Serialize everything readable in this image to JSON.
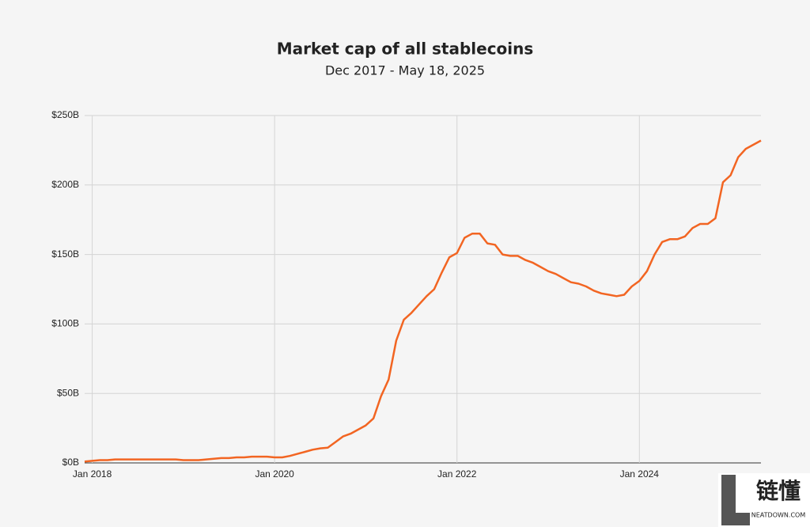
{
  "chart_data": {
    "type": "line",
    "title": "Market cap of all stablecoins",
    "subtitle": "Dec 2017 - May 18, 2025",
    "x": [
      "2017-12",
      "2018-01",
      "2018-02",
      "2018-03",
      "2018-04",
      "2018-05",
      "2018-06",
      "2018-07",
      "2018-08",
      "2018-09",
      "2018-10",
      "2018-11",
      "2018-12",
      "2019-01",
      "2019-02",
      "2019-03",
      "2019-04",
      "2019-05",
      "2019-06",
      "2019-07",
      "2019-08",
      "2019-09",
      "2019-10",
      "2019-11",
      "2019-12",
      "2020-01",
      "2020-02",
      "2020-03",
      "2020-04",
      "2020-05",
      "2020-06",
      "2020-07",
      "2020-08",
      "2020-09",
      "2020-10",
      "2020-11",
      "2020-12",
      "2021-01",
      "2021-02",
      "2021-03",
      "2021-04",
      "2021-05",
      "2021-06",
      "2021-07",
      "2021-08",
      "2021-09",
      "2021-10",
      "2021-11",
      "2021-12",
      "2022-01",
      "2022-02",
      "2022-03",
      "2022-04",
      "2022-05",
      "2022-06",
      "2022-07",
      "2022-08",
      "2022-09",
      "2022-10",
      "2022-11",
      "2022-12",
      "2023-01",
      "2023-02",
      "2023-03",
      "2023-04",
      "2023-05",
      "2023-06",
      "2023-07",
      "2023-08",
      "2023-09",
      "2023-10",
      "2023-11",
      "2023-12",
      "2024-01",
      "2024-02",
      "2024-03",
      "2024-04",
      "2024-05",
      "2024-06",
      "2024-07",
      "2024-08",
      "2024-09",
      "2024-10",
      "2024-11",
      "2024-12",
      "2025-01",
      "2025-02",
      "2025-03",
      "2025-04",
      "2025-05"
    ],
    "series": [
      {
        "name": "Market cap",
        "color": "#f26522",
        "values": [
          1,
          1.5,
          2,
          2,
          2.5,
          2.5,
          2.5,
          2.5,
          2.5,
          2.5,
          2.5,
          2.5,
          2.5,
          2,
          2,
          2,
          2.5,
          3,
          3.5,
          3.5,
          4,
          4,
          4.5,
          4.5,
          4.5,
          4,
          4,
          5,
          6.5,
          8,
          9.5,
          10.5,
          11,
          15,
          19,
          21,
          24,
          27,
          32,
          48,
          60,
          88,
          103,
          108,
          114,
          120,
          125,
          137,
          148,
          151,
          162,
          165,
          165,
          158,
          157,
          150,
          149,
          149,
          146,
          144,
          141,
          138,
          136,
          133,
          130,
          129,
          127,
          124,
          122,
          121,
          120,
          121,
          127,
          131,
          138,
          150,
          159,
          161,
          161,
          163,
          169,
          172,
          172,
          176,
          202,
          207,
          220,
          226,
          229,
          232
        ]
      }
    ],
    "xlim": [
      "2017-12",
      "2025-05"
    ],
    "xticks": [
      {
        "value": "2018-01",
        "label": "Jan 2018"
      },
      {
        "value": "2020-01",
        "label": "Jan 2020"
      },
      {
        "value": "2022-01",
        "label": "Jan 2022"
      },
      {
        "value": "2024-01",
        "label": "Jan 2024"
      }
    ],
    "ylim": [
      0,
      250
    ],
    "yticks": [
      {
        "value": 0,
        "label": "$0B"
      },
      {
        "value": 50,
        "label": "$50B"
      },
      {
        "value": 100,
        "label": "$100B"
      },
      {
        "value": 150,
        "label": "$150B"
      },
      {
        "value": 200,
        "label": "$200B"
      },
      {
        "value": 250,
        "label": "$250B"
      }
    ],
    "grid": true
  },
  "watermark": {
    "text": "链懂",
    "subtext": "NEATDOWN.COM"
  }
}
